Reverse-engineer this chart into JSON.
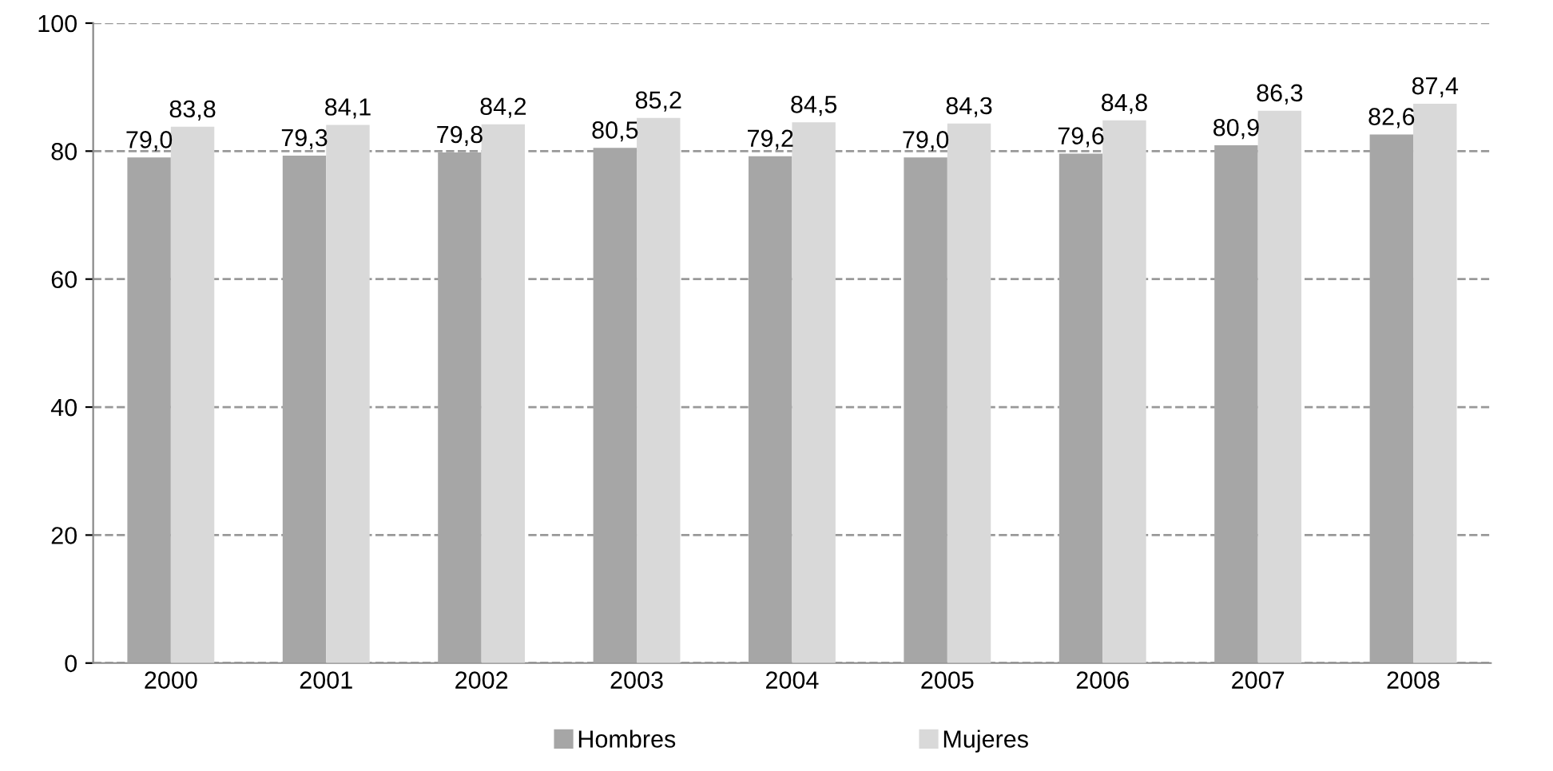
{
  "chart_data": {
    "type": "bar",
    "categories": [
      "2000",
      "2001",
      "2002",
      "2003",
      "2004",
      "2005",
      "2006",
      "2007",
      "2008"
    ],
    "series": [
      {
        "name": "Hombres",
        "color": "#a6a6a6",
        "values": [
          79.0,
          79.3,
          79.8,
          80.5,
          79.2,
          79.0,
          79.6,
          80.9,
          82.6
        ],
        "value_labels": [
          "79,0",
          "79,3",
          "79,8",
          "80,5",
          "79,2",
          "79,0",
          "79,6",
          "80,9",
          "82,6"
        ]
      },
      {
        "name": "Mujeres",
        "color": "#d9d9d9",
        "values": [
          83.8,
          84.1,
          84.2,
          85.2,
          84.5,
          84.3,
          84.8,
          86.3,
          87.4
        ],
        "value_labels": [
          "83,8",
          "84,1",
          "84,2",
          "85,2",
          "84,5",
          "84,3",
          "84,8",
          "86,3",
          "87,4"
        ]
      }
    ],
    "ylim": [
      0,
      100
    ],
    "yticks": [
      0,
      20,
      40,
      60,
      80,
      100
    ],
    "grid": "y",
    "line_style": "dashed",
    "legend": "bottom"
  }
}
